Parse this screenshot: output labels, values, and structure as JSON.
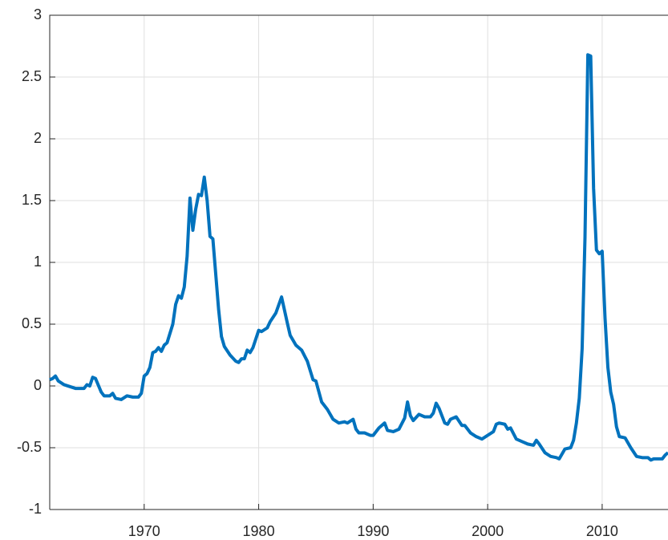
{
  "chart_data": {
    "type": "line",
    "x": [
      1961.75,
      1962.0,
      1962.25,
      1962.5,
      1963.0,
      1964.0,
      1964.75,
      1965.0,
      1965.25,
      1965.5,
      1965.75,
      1966.25,
      1966.5,
      1967.0,
      1967.25,
      1967.5,
      1968.0,
      1968.5,
      1969.0,
      1969.5,
      1969.75,
      1970.0,
      1970.25,
      1970.5,
      1970.75,
      1971.0,
      1971.25,
      1971.5,
      1971.75,
      1972.0,
      1972.5,
      1972.75,
      1973.0,
      1973.25,
      1973.5,
      1973.75,
      1974.0,
      1974.25,
      1974.5,
      1974.75,
      1975.0,
      1975.25,
      1975.5,
      1975.75,
      1976.0,
      1976.5,
      1976.75,
      1977.0,
      1977.5,
      1978.0,
      1978.25,
      1978.5,
      1978.75,
      1979.0,
      1979.25,
      1979.5,
      1980.0,
      1980.25,
      1980.75,
      1981.0,
      1981.5,
      1982.0,
      1982.5,
      1982.75,
      1983.25,
      1983.75,
      1984.25,
      1984.75,
      1985.0,
      1985.5,
      1986.0,
      1986.5,
      1987.0,
      1987.5,
      1987.75,
      1988.25,
      1988.5,
      1988.75,
      1989.25,
      1989.75,
      1990.0,
      1990.5,
      1991.0,
      1991.25,
      1991.75,
      1992.25,
      1992.75,
      1993.0,
      1993.25,
      1993.5,
      1994.0,
      1994.5,
      1995.0,
      1995.25,
      1995.5,
      1995.75,
      1996.25,
      1996.5,
      1996.75,
      1997.25,
      1997.75,
      1998.0,
      1998.5,
      1999.0,
      1999.5,
      2000.0,
      2000.5,
      2000.75,
      2001.0,
      2001.5,
      2001.75,
      2002.0,
      2002.5,
      2003.0,
      2003.5,
      2004.0,
      2004.25,
      2004.5,
      2005.0,
      2005.5,
      2006.0,
      2006.25,
      2006.75,
      2007.25,
      2007.5,
      2007.75,
      2008.0,
      2008.25,
      2008.5,
      2008.75,
      2009.0,
      2009.25,
      2009.5,
      2009.75,
      2010.0,
      2010.25,
      2010.5,
      2010.75,
      2011.0,
      2011.25,
      2011.5,
      2012.0,
      2012.5,
      2013.0,
      2013.5,
      2014.0,
      2014.25,
      2014.5,
      2015.0,
      2015.25,
      2015.5,
      2015.75
    ],
    "series": [
      {
        "color": "#0072bd",
        "values": [
          0.05,
          0.06,
          0.08,
          0.04,
          0.01,
          -0.02,
          -0.02,
          0.01,
          0.0,
          0.07,
          0.06,
          -0.05,
          -0.08,
          -0.08,
          -0.06,
          -0.1,
          -0.11,
          -0.08,
          -0.09,
          -0.09,
          -0.06,
          0.08,
          0.1,
          0.15,
          0.27,
          0.28,
          0.31,
          0.28,
          0.33,
          0.35,
          0.5,
          0.66,
          0.73,
          0.71,
          0.8,
          1.05,
          1.52,
          1.26,
          1.43,
          1.55,
          1.54,
          1.69,
          1.5,
          1.21,
          1.19,
          0.62,
          0.4,
          0.32,
          0.25,
          0.2,
          0.19,
          0.22,
          0.22,
          0.29,
          0.27,
          0.31,
          0.45,
          0.44,
          0.47,
          0.52,
          0.59,
          0.72,
          0.51,
          0.41,
          0.33,
          0.29,
          0.2,
          0.05,
          0.04,
          -0.13,
          -0.19,
          -0.27,
          -0.3,
          -0.29,
          -0.3,
          -0.27,
          -0.35,
          -0.38,
          -0.38,
          -0.4,
          -0.4,
          -0.34,
          -0.3,
          -0.36,
          -0.37,
          -0.35,
          -0.26,
          -0.13,
          -0.24,
          -0.28,
          -0.23,
          -0.25,
          -0.25,
          -0.22,
          -0.14,
          -0.18,
          -0.3,
          -0.31,
          -0.27,
          -0.25,
          -0.32,
          -0.32,
          -0.38,
          -0.41,
          -0.43,
          -0.4,
          -0.37,
          -0.31,
          -0.3,
          -0.31,
          -0.35,
          -0.34,
          -0.43,
          -0.45,
          -0.47,
          -0.48,
          -0.44,
          -0.47,
          -0.54,
          -0.57,
          -0.58,
          -0.59,
          -0.51,
          -0.5,
          -0.44,
          -0.3,
          -0.1,
          0.3,
          1.2,
          2.68,
          2.67,
          1.6,
          1.1,
          1.07,
          1.09,
          0.55,
          0.15,
          -0.05,
          -0.15,
          -0.33,
          -0.41,
          -0.42,
          -0.5,
          -0.57,
          -0.58,
          -0.58,
          -0.6,
          -0.59,
          -0.59,
          -0.59,
          -0.56,
          -0.54
        ]
      }
    ],
    "xlim": [
      1961.75,
      2015.75
    ],
    "xticks": [
      1970,
      1980,
      1990,
      2000,
      2010
    ],
    "ylim": [
      -1,
      3
    ],
    "yticks": [
      -1,
      -0.5,
      0,
      0.5,
      1,
      1.5,
      2,
      2.5,
      3
    ],
    "grid": true
  }
}
